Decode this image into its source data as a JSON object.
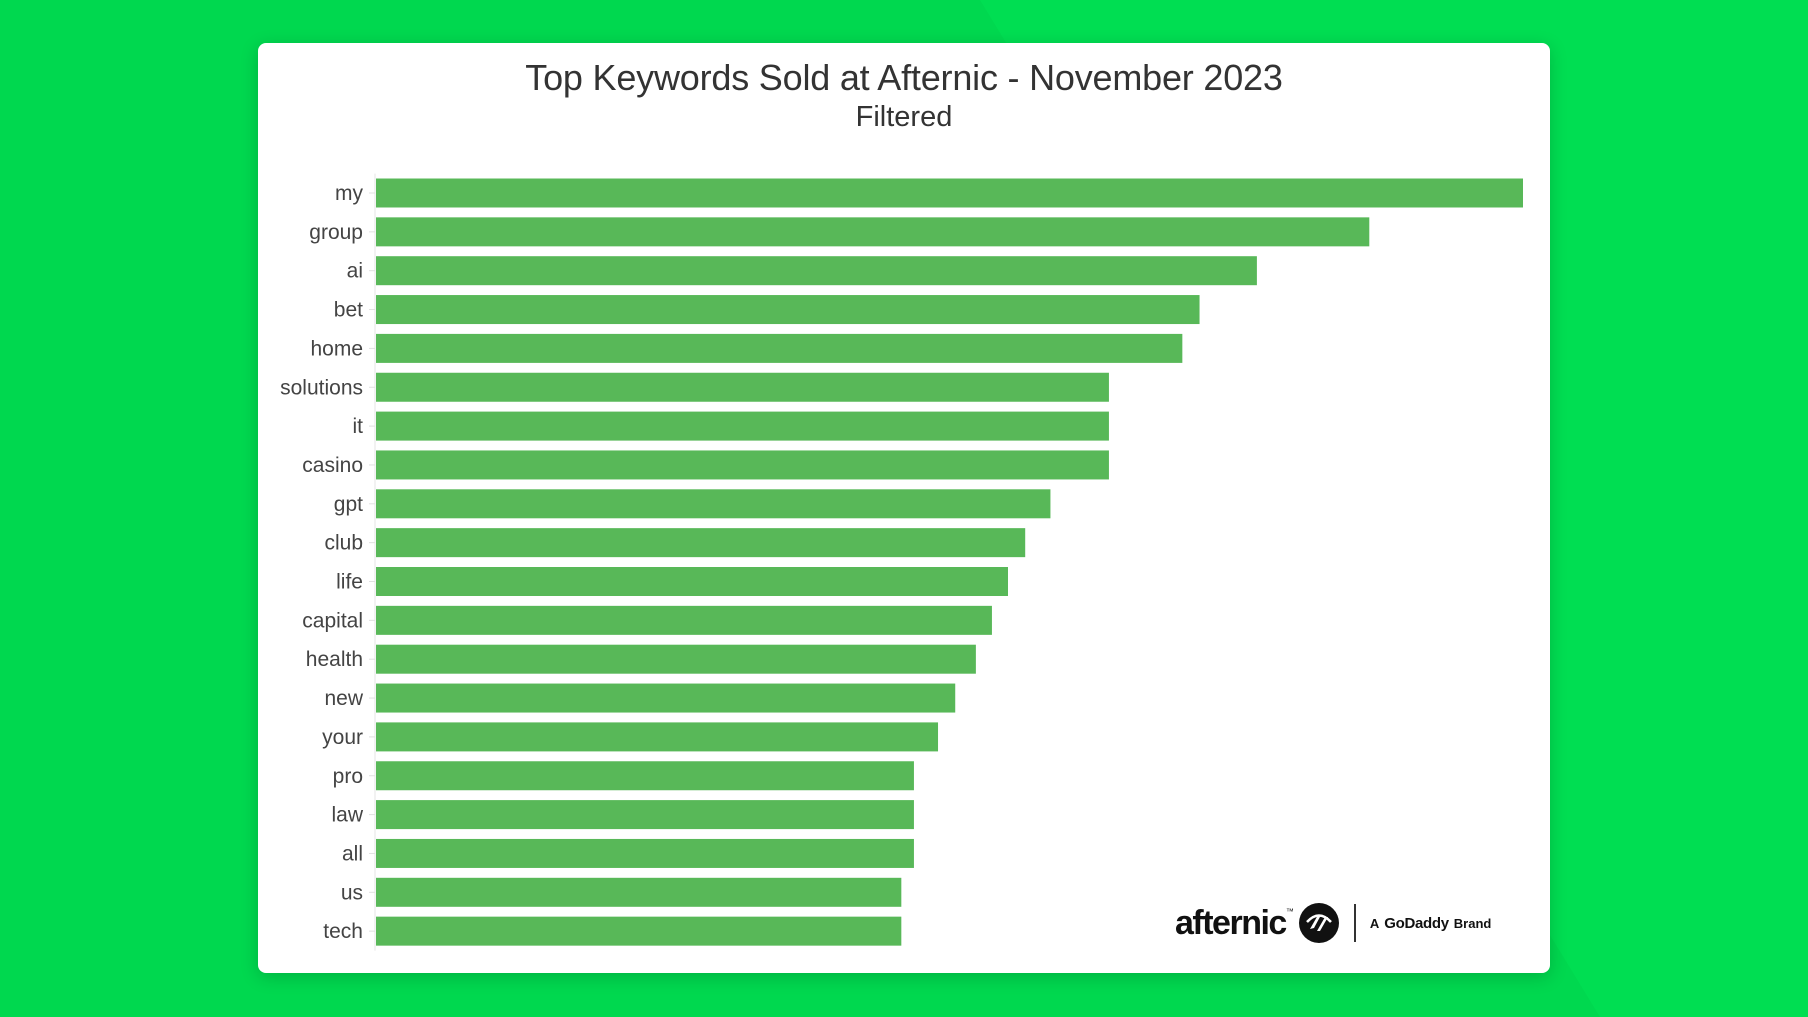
{
  "chart_data": {
    "type": "bar",
    "orientation": "horizontal",
    "title": "Top Keywords Sold at Afternic - November 2023",
    "subtitle": "Filtered",
    "categories": [
      "my",
      "group",
      "ai",
      "bet",
      "home",
      "solutions",
      "it",
      "casino",
      "gpt",
      "club",
      "life",
      "capital",
      "health",
      "new",
      "your",
      "pro",
      "law",
      "all",
      "us",
      "tech"
    ],
    "values": [
      1.0,
      0.866,
      0.768,
      0.718,
      0.703,
      0.639,
      0.639,
      0.639,
      0.588,
      0.566,
      0.551,
      0.537,
      0.523,
      0.505,
      0.49,
      0.469,
      0.469,
      0.469,
      0.458,
      0.458
    ],
    "value_scale": "relative to top keyword (my = 1.0); no value axis shown",
    "bar_color": "#58b858",
    "xlabel": "",
    "ylabel": "",
    "grid": false,
    "legend": false
  },
  "branding": {
    "word": "afternic",
    "tm": "™",
    "prefix": "A",
    "godaddy": "GoDaddy",
    "suffix": "Brand"
  },
  "colors": {
    "background": "#00d84f",
    "card": "#ffffff",
    "text": "#333333"
  }
}
